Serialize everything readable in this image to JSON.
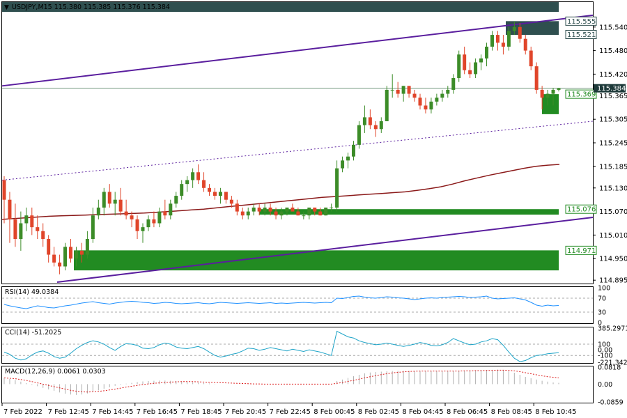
{
  "header": {
    "symbol_line": "USDJPY,M15  115.380 115.385 115.376 115.384"
  },
  "chart_data": [
    {
      "type": "candlestick",
      "symbol": "USDJPY",
      "timeframe": "M15",
      "ohlc_label": "115.380 115.385 115.376 115.384",
      "ylim": [
        114.89,
        115.6
      ],
      "y_ticks": [
        "115.540",
        "115.480",
        "115.420",
        "115.365",
        "115.305",
        "115.245",
        "115.185",
        "115.130",
        "115.070",
        "115.010",
        "114.950",
        "114.895"
      ],
      "x_ticks": [
        "7 Feb 2022",
        "7 Feb 12:45",
        "7 Feb 14:45",
        "7 Feb 16:45",
        "7 Feb 18:45",
        "7 Feb 20:45",
        "7 Feb 22:45",
        "8 Feb 00:45",
        "8 Feb 02:45",
        "8 Feb 04:45",
        "8 Feb 06:45",
        "8 Feb 08:45",
        "8 Feb 10:45"
      ],
      "current_price": "115.384",
      "zone_labels": [
        "115.555",
        "115.521",
        "115.369",
        "115.076",
        "114.971"
      ],
      "zones": [
        {
          "from": 115.52,
          "to": 115.555,
          "color": "#2f4f4f"
        },
        {
          "from": 115.318,
          "to": 115.369,
          "color": "#228b22"
        },
        {
          "from": 115.062,
          "to": 115.076,
          "color": "#228b22"
        },
        {
          "from": 114.92,
          "to": 114.971,
          "color": "#228b22"
        }
      ],
      "candles": [
        [
          115.15,
          115.16,
          115.04,
          115.1
        ],
        [
          115.1,
          115.12,
          114.99,
          115.05
        ],
        [
          115.05,
          115.09,
          114.98,
          115.0
        ],
        [
          115.0,
          115.07,
          114.97,
          115.04
        ],
        [
          115.04,
          115.08,
          115.02,
          115.06
        ],
        [
          115.06,
          115.08,
          115.01,
          115.03
        ],
        [
          115.03,
          115.06,
          115.0,
          115.02
        ],
        [
          115.02,
          115.04,
          114.98,
          115.0
        ],
        [
          115.0,
          115.01,
          114.94,
          114.96
        ],
        [
          114.96,
          114.98,
          114.93,
          114.94
        ],
        [
          114.94,
          114.96,
          114.91,
          114.93
        ],
        [
          114.93,
          114.99,
          114.92,
          114.98
        ],
        [
          114.98,
          115.0,
          114.94,
          114.95
        ],
        [
          114.95,
          114.98,
          114.93,
          114.97
        ],
        [
          114.97,
          114.99,
          114.94,
          114.96
        ],
        [
          114.96,
          115.02,
          114.95,
          115.0
        ],
        [
          115.0,
          115.08,
          114.99,
          115.06
        ],
        [
          115.06,
          115.1,
          115.05,
          115.08
        ],
        [
          115.08,
          115.13,
          115.06,
          115.12
        ],
        [
          115.12,
          115.14,
          115.08,
          115.09
        ],
        [
          115.09,
          115.12,
          115.06,
          115.1
        ],
        [
          115.1,
          115.13,
          115.06,
          115.07
        ],
        [
          115.07,
          115.1,
          115.05,
          115.06
        ],
        [
          115.06,
          115.07,
          115.03,
          115.05
        ],
        [
          115.05,
          115.06,
          115.0,
          115.02
        ],
        [
          115.02,
          115.04,
          114.99,
          115.03
        ],
        [
          115.03,
          115.06,
          115.02,
          115.05
        ],
        [
          115.05,
          115.07,
          115.03,
          115.04
        ],
        [
          115.04,
          115.08,
          115.03,
          115.07
        ],
        [
          115.07,
          115.1,
          115.05,
          115.06
        ],
        [
          115.06,
          115.1,
          115.05,
          115.09
        ],
        [
          115.09,
          115.12,
          115.08,
          115.11
        ],
        [
          115.11,
          115.15,
          115.1,
          115.14
        ],
        [
          115.14,
          115.16,
          115.12,
          115.15
        ],
        [
          115.15,
          115.18,
          115.13,
          115.17
        ],
        [
          115.17,
          115.19,
          115.14,
          115.15
        ],
        [
          115.15,
          115.17,
          115.12,
          115.13
        ],
        [
          115.13,
          115.14,
          115.11,
          115.12
        ],
        [
          115.12,
          115.13,
          115.1,
          115.11
        ],
        [
          115.11,
          115.13,
          115.09,
          115.12
        ],
        [
          115.12,
          115.12,
          115.09,
          115.1
        ],
        [
          115.1,
          115.11,
          115.08,
          115.09
        ],
        [
          115.09,
          115.1,
          115.06,
          115.07
        ],
        [
          115.07,
          115.08,
          115.05,
          115.06
        ],
        [
          115.06,
          115.08,
          115.05,
          115.07
        ],
        [
          115.07,
          115.09,
          115.06,
          115.08
        ],
        [
          115.08,
          115.09,
          115.06,
          115.07
        ],
        [
          115.07,
          115.09,
          115.06,
          115.08
        ],
        [
          115.08,
          115.09,
          115.06,
          115.07
        ],
        [
          115.07,
          115.08,
          115.05,
          115.06
        ],
        [
          115.06,
          115.08,
          115.05,
          115.07
        ],
        [
          115.07,
          115.08,
          115.06,
          115.08
        ],
        [
          115.08,
          115.09,
          115.07,
          115.07
        ],
        [
          115.07,
          115.08,
          115.06,
          115.06
        ],
        [
          115.06,
          115.07,
          115.05,
          115.06
        ],
        [
          115.06,
          115.08,
          115.05,
          115.08
        ],
        [
          115.08,
          115.08,
          115.06,
          115.07
        ],
        [
          115.07,
          115.08,
          115.06,
          115.06
        ],
        [
          115.06,
          115.08,
          115.06,
          115.08
        ],
        [
          115.08,
          115.09,
          115.07,
          115.08
        ],
        [
          115.08,
          115.2,
          115.07,
          115.18
        ],
        [
          115.18,
          115.21,
          115.17,
          115.2
        ],
        [
          115.2,
          115.22,
          115.18,
          115.21
        ],
        [
          115.21,
          115.25,
          115.2,
          115.24
        ],
        [
          115.24,
          115.3,
          115.23,
          115.29
        ],
        [
          115.29,
          115.34,
          115.27,
          115.31
        ],
        [
          115.31,
          115.33,
          115.28,
          115.29
        ],
        [
          115.29,
          115.3,
          115.26,
          115.28
        ],
        [
          115.28,
          115.31,
          115.27,
          115.3
        ],
        [
          115.3,
          115.39,
          115.3,
          115.38
        ],
        [
          115.38,
          115.42,
          115.36,
          115.38
        ],
        [
          115.38,
          115.4,
          115.36,
          115.37
        ],
        [
          115.37,
          115.39,
          115.35,
          115.39
        ],
        [
          115.39,
          115.39,
          115.36,
          115.37
        ],
        [
          115.37,
          115.38,
          115.35,
          115.36
        ],
        [
          115.36,
          115.37,
          115.33,
          115.34
        ],
        [
          115.34,
          115.36,
          115.32,
          115.33
        ],
        [
          115.33,
          115.36,
          115.32,
          115.35
        ],
        [
          115.35,
          115.37,
          115.34,
          115.36
        ],
        [
          115.36,
          115.38,
          115.35,
          115.37
        ],
        [
          115.37,
          115.39,
          115.36,
          115.38
        ],
        [
          115.38,
          115.42,
          115.37,
          115.41
        ],
        [
          115.41,
          115.48,
          115.4,
          115.47
        ],
        [
          115.47,
          115.49,
          115.42,
          115.43
        ],
        [
          115.43,
          115.45,
          115.41,
          115.42
        ],
        [
          115.42,
          115.46,
          115.41,
          115.45
        ],
        [
          115.45,
          115.47,
          115.43,
          115.46
        ],
        [
          115.46,
          115.5,
          115.44,
          115.49
        ],
        [
          115.49,
          115.53,
          115.48,
          115.52
        ],
        [
          115.52,
          115.53,
          115.48,
          115.5
        ],
        [
          115.5,
          115.52,
          115.47,
          115.49
        ],
        [
          115.49,
          115.54,
          115.48,
          115.53
        ],
        [
          115.53,
          115.555,
          115.52,
          115.54
        ],
        [
          115.54,
          115.55,
          115.5,
          115.51
        ],
        [
          115.51,
          115.52,
          115.47,
          115.48
        ],
        [
          115.48,
          115.49,
          115.43,
          115.44
        ],
        [
          115.44,
          115.45,
          115.37,
          115.38
        ],
        [
          115.38,
          115.39,
          115.33,
          115.36
        ],
        [
          115.36,
          115.38,
          115.34,
          115.37
        ],
        [
          115.37,
          115.385,
          115.34,
          115.38
        ],
        [
          115.38,
          115.385,
          115.376,
          115.384
        ]
      ],
      "ma": [
        115.05,
        115.052,
        115.054,
        115.056,
        115.058,
        115.059,
        115.06,
        115.061,
        115.062,
        115.063,
        115.064,
        115.065,
        115.066,
        115.068,
        115.07,
        115.072,
        115.074,
        115.076,
        115.079,
        115.082,
        115.085,
        115.088,
        115.091,
        115.094,
        115.097,
        115.1,
        115.103,
        115.106,
        115.108,
        115.11,
        115.112,
        115.114,
        115.116,
        115.118,
        115.12,
        115.124,
        115.128,
        115.133,
        115.14,
        115.148,
        115.155,
        115.162,
        115.168,
        115.174,
        115.18,
        115.185,
        115.188,
        115.19
      ],
      "trendlines": [
        {
          "from": 115.39,
          "to": 115.57,
          "style": "solid",
          "color": "#5a1e9e"
        },
        {
          "from": 115.15,
          "to": 115.3,
          "style": "dotted",
          "color": "#5a1e9e"
        },
        {
          "from": 114.89,
          "to": 115.055,
          "style": "solid",
          "color": "#5a1e9e"
        }
      ]
    },
    {
      "type": "line",
      "name": "RSI",
      "label": "RSI(14) 49.0384",
      "ylim": [
        0,
        100
      ],
      "y_ticks": [
        "100",
        "70",
        "30",
        "0"
      ],
      "levels": [
        70,
        30
      ],
      "values": [
        52,
        48,
        45,
        42,
        40,
        44,
        48,
        46,
        43,
        42,
        45,
        48,
        50,
        53,
        56,
        58,
        60,
        57,
        55,
        53,
        56,
        58,
        60,
        61,
        60,
        58,
        57,
        55,
        56,
        58,
        57,
        55,
        54,
        55,
        56,
        57,
        55,
        54,
        56,
        58,
        57,
        56,
        55,
        56,
        57,
        56,
        55,
        56,
        57,
        55,
        56,
        55,
        56,
        57,
        58,
        57,
        56,
        57,
        58,
        57,
        70,
        69,
        72,
        75,
        76,
        73,
        71,
        70,
        72,
        74,
        73,
        71,
        70,
        68,
        66,
        68,
        70,
        71,
        70,
        72,
        73,
        74,
        75,
        74,
        72,
        73,
        74,
        76,
        70,
        68,
        69,
        70,
        71,
        68,
        65,
        58,
        50,
        47,
        50,
        48,
        49
      ]
    },
    {
      "type": "line",
      "name": "CCI",
      "label": "CCI(14) -51.2025",
      "ylim": [
        -221.3426,
        385.2971
      ],
      "y_ticks": [
        "385.2971",
        "100",
        "0.00",
        "-100",
        "-221.3426"
      ],
      "levels": [
        100,
        -100
      ],
      "values": [
        -40,
        -80,
        -150,
        -180,
        -160,
        -90,
        -40,
        -20,
        -60,
        -120,
        -150,
        -130,
        -60,
        20,
        80,
        130,
        160,
        140,
        100,
        40,
        -10,
        60,
        110,
        100,
        80,
        30,
        20,
        40,
        90,
        120,
        100,
        50,
        30,
        20,
        40,
        60,
        20,
        -40,
        -100,
        -130,
        -110,
        -80,
        -60,
        -20,
        30,
        20,
        -10,
        10,
        40,
        20,
        0,
        -20,
        10,
        -10,
        -30,
        0,
        -20,
        -40,
        -70,
        -100,
        330,
        280,
        230,
        210,
        160,
        130,
        110,
        90,
        100,
        120,
        100,
        80,
        60,
        80,
        100,
        130,
        110,
        80,
        70,
        90,
        130,
        200,
        160,
        120,
        90,
        100,
        140,
        160,
        200,
        180,
        80,
        -40,
        -150,
        -210,
        -190,
        -140,
        -100,
        -90,
        -70,
        -60,
        -51
      ]
    },
    {
      "type": "bar+line",
      "name": "MACD",
      "label": "MACD(12,26,9) 0.0061 0.0303",
      "ylim": [
        -0.0859,
        0.0818
      ],
      "y_ticks": [
        "0.0818",
        "0.00",
        "-0.0859"
      ],
      "histogram": [
        0.03,
        0.025,
        0.02,
        0.012,
        0.005,
        -0.003,
        -0.01,
        -0.018,
        -0.025,
        -0.032,
        -0.04,
        -0.046,
        -0.05,
        -0.052,
        -0.05,
        -0.045,
        -0.038,
        -0.03,
        -0.022,
        -0.015,
        -0.008,
        -0.003,
        0.002,
        0.006,
        0.01,
        0.013,
        0.015,
        0.016,
        0.017,
        0.017,
        0.016,
        0.015,
        0.013,
        0.011,
        0.009,
        0.007,
        0.005,
        0.003,
        0.001,
        0.0,
        0.0,
        0.0,
        0.0,
        0.0,
        0.0,
        0.0,
        0.0,
        0.0,
        0.0,
        0.0,
        0.0,
        0.0,
        0.0,
        0.0,
        0.0,
        0.0,
        0.0,
        0.0,
        0.0,
        0.0,
        0.015,
        0.022,
        0.03,
        0.038,
        0.045,
        0.052,
        0.056,
        0.058,
        0.06,
        0.062,
        0.063,
        0.064,
        0.064,
        0.064,
        0.063,
        0.062,
        0.062,
        0.062,
        0.062,
        0.062,
        0.062,
        0.063,
        0.064,
        0.065,
        0.066,
        0.067,
        0.068,
        0.068,
        0.069,
        0.07,
        0.068,
        0.062,
        0.055,
        0.045,
        0.035,
        0.028,
        0.022,
        0.016,
        0.012,
        0.008,
        0.0061
      ],
      "signal": [
        0.03,
        0.028,
        0.026,
        0.022,
        0.018,
        0.012,
        0.006,
        0.0,
        -0.006,
        -0.012,
        -0.018,
        -0.024,
        -0.03,
        -0.034,
        -0.037,
        -0.038,
        -0.037,
        -0.035,
        -0.032,
        -0.028,
        -0.024,
        -0.019,
        -0.014,
        -0.01,
        -0.006,
        -0.002,
        0.001,
        0.004,
        0.006,
        0.008,
        0.01,
        0.011,
        0.012,
        0.012,
        0.012,
        0.011,
        0.01,
        0.009,
        0.008,
        0.007,
        0.006,
        0.005,
        0.004,
        0.003,
        0.002,
        0.001,
        0.001,
        0.0,
        0.0,
        0.0,
        0.0,
        0.0,
        0.0,
        0.0,
        0.0,
        0.0,
        0.0,
        0.0,
        0.0,
        0.0,
        0.004,
        0.008,
        0.013,
        0.018,
        0.024,
        0.03,
        0.036,
        0.041,
        0.046,
        0.05,
        0.054,
        0.057,
        0.059,
        0.061,
        0.062,
        0.063,
        0.063,
        0.063,
        0.063,
        0.063,
        0.063,
        0.063,
        0.063,
        0.064,
        0.064,
        0.065,
        0.065,
        0.066,
        0.066,
        0.067,
        0.067,
        0.066,
        0.064,
        0.06,
        0.055,
        0.05,
        0.045,
        0.04,
        0.036,
        0.033,
        0.0303
      ]
    }
  ]
}
